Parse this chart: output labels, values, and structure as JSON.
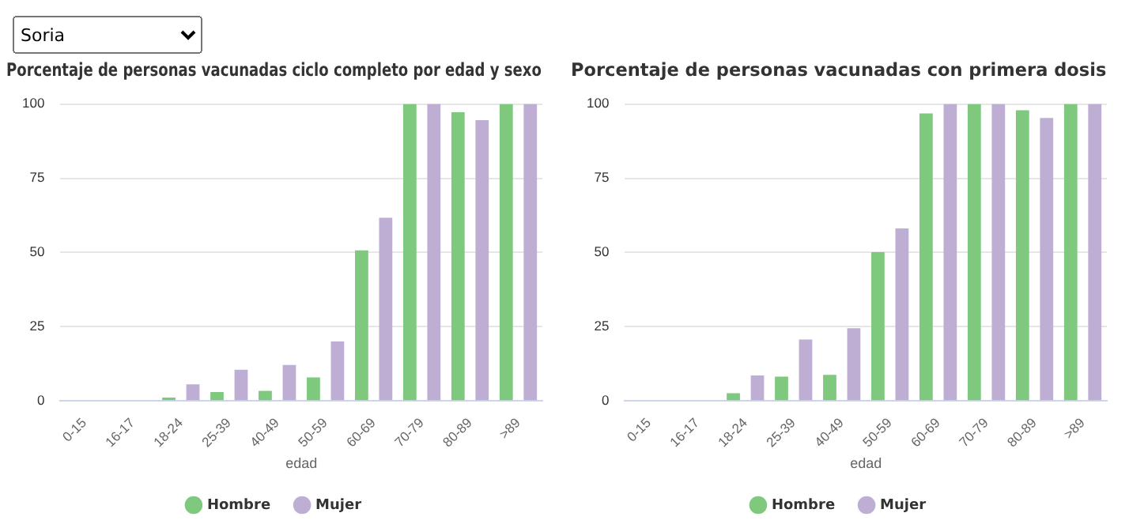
{
  "chart_data": [
    {
      "type": "bar",
      "title": "Porcentaje de personas vacunadas ciclo completo por edad y sexo",
      "annotations": [
        "Soria"
      ],
      "xlabel": "edad",
      "categories": [
        "0-15",
        "16-17",
        "18-24",
        "25-39",
        "40-49",
        "50-59",
        "60-69",
        "70-79",
        "80-89",
        ">89"
      ],
      "series": [
        {
          "name": "Hombre",
          "color": "#7fc97f",
          "values": [
            0,
            0,
            1.1,
            3,
            3.4,
            7.9,
            50.7,
            100,
            97.2,
            100
          ]
        },
        {
          "name": "Mujer",
          "color": "#beaed4",
          "values": [
            0,
            0,
            5.6,
            10.5,
            12.1,
            20,
            61.7,
            100,
            94.6,
            100
          ]
        }
      ],
      "ylim": [
        0,
        100
      ],
      "yticks": [
        0,
        25,
        50,
        75,
        100
      ],
      "grid": "y",
      "legend": "bottom"
    },
    {
      "type": "bar",
      "title": "Porcentaje de personas vacunadas con primera dosis",
      "xlabel": "edad",
      "categories": [
        "0-15",
        "16-17",
        "18-24",
        "25-39",
        "40-49",
        "50-59",
        "60-69",
        "70-79",
        "80-89",
        ">89"
      ],
      "series": [
        {
          "name": "Hombre",
          "color": "#7fc97f",
          "values": [
            0,
            0,
            2.6,
            8.2,
            8.8,
            50.1,
            96.8,
            100,
            97.9,
            100
          ]
        },
        {
          "name": "Mujer",
          "color": "#beaed4",
          "values": [
            0,
            0,
            8.6,
            20.7,
            24.5,
            58.1,
            100,
            100,
            95.3,
            100
          ]
        }
      ],
      "ylim": [
        0,
        100
      ],
      "yticks": [
        0,
        25,
        50,
        75,
        100
      ],
      "grid": "y",
      "legend": "bottom"
    }
  ]
}
